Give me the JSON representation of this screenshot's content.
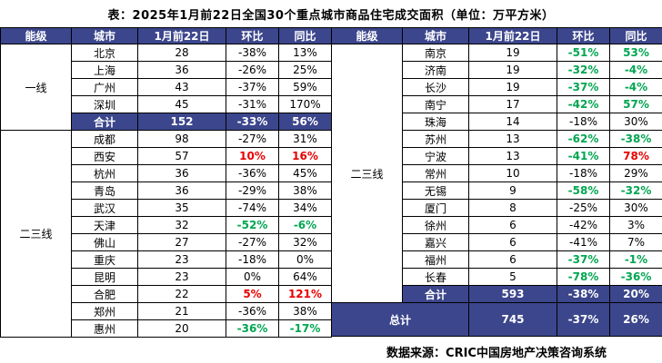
{
  "title": "表：2025年1月前22日全国30个重点城市商品住宅成交面积（单位：万平方米）",
  "source": "数据来源：CRIC中国房地产决策咨询系统",
  "colors": {
    "header_bg": "#3c468c",
    "total_row_bg": "#3c468c",
    "header_text": "#ffffff",
    "negative_green": "#00a651",
    "positive_red": "#e80000",
    "body_text": "#000000"
  },
  "chart_data": {
    "type": "table",
    "title": "表：2025年1月前22日全国30个重点城市商品住宅成交面积（单位：万平方米）",
    "columns": [
      "能级",
      "城市",
      "1月前22日",
      "环比",
      "同比"
    ],
    "left_table": {
      "groups": [
        {
          "tier": "一线",
          "rows": [
            {
              "city": "北京",
              "value": "28",
              "mom": "-38%",
              "yoy": "13%"
            },
            {
              "city": "上海",
              "value": "36",
              "mom": "-26%",
              "yoy": "25%"
            },
            {
              "city": "广州",
              "value": "43",
              "mom": "-37%",
              "yoy": "59%"
            },
            {
              "city": "深圳",
              "value": "45",
              "mom": "-31%",
              "yoy": "170%"
            },
            {
              "city": "合计",
              "value": "152",
              "mom": "-33%",
              "yoy": "56%",
              "kind": "subtotal"
            }
          ]
        },
        {
          "tier": "二三线",
          "rows": [
            {
              "city": "成都",
              "value": "98",
              "mom": "-27%",
              "yoy": "31%"
            },
            {
              "city": "西安",
              "value": "57",
              "mom": "10%",
              "yoy": "16%",
              "mom_color": "red",
              "yoy_color": "red"
            },
            {
              "city": "杭州",
              "value": "36",
              "mom": "-36%",
              "yoy": "45%"
            },
            {
              "city": "青岛",
              "value": "36",
              "mom": "-29%",
              "yoy": "38%"
            },
            {
              "city": "武汉",
              "value": "35",
              "mom": "-74%",
              "yoy": "34%"
            },
            {
              "city": "天津",
              "value": "32",
              "mom": "-52%",
              "yoy": "-6%",
              "mom_color": "green",
              "yoy_color": "green"
            },
            {
              "city": "佛山",
              "value": "27",
              "mom": "-27%",
              "yoy": "32%"
            },
            {
              "city": "重庆",
              "value": "23",
              "mom": "-18%",
              "yoy": "0%"
            },
            {
              "city": "昆明",
              "value": "23",
              "mom": "0%",
              "yoy": "64%"
            },
            {
              "city": "合肥",
              "value": "22",
              "mom": "5%",
              "yoy": "121%",
              "mom_color": "red",
              "yoy_color": "red"
            },
            {
              "city": "郑州",
              "value": "21",
              "mom": "-36%",
              "yoy": "38%"
            },
            {
              "city": "惠州",
              "value": "20",
              "mom": "-36%",
              "yoy": "-17%",
              "mom_color": "green",
              "yoy_color": "green"
            }
          ]
        }
      ]
    },
    "right_table": {
      "groups": [
        {
          "tier": "二三线",
          "rows": [
            {
              "city": "南京",
              "value": "19",
              "mom": "-51%",
              "yoy": "53%",
              "mom_color": "green",
              "yoy_color": "green"
            },
            {
              "city": "济南",
              "value": "19",
              "mom": "-32%",
              "yoy": "-4%",
              "mom_color": "green",
              "yoy_color": "green"
            },
            {
              "city": "长沙",
              "value": "19",
              "mom": "-37%",
              "yoy": "-4%",
              "mom_color": "green",
              "yoy_color": "green"
            },
            {
              "city": "南宁",
              "value": "17",
              "mom": "-42%",
              "yoy": "57%",
              "mom_color": "green",
              "yoy_color": "green"
            },
            {
              "city": "珠海",
              "value": "14",
              "mom": "-18%",
              "yoy": "30%"
            },
            {
              "city": "苏州",
              "value": "13",
              "mom": "-62%",
              "yoy": "-38%",
              "mom_color": "green",
              "yoy_color": "green"
            },
            {
              "city": "宁波",
              "value": "13",
              "mom": "-41%",
              "yoy": "78%",
              "mom_color": "green",
              "yoy_color": "red"
            },
            {
              "city": "常州",
              "value": "10",
              "mom": "-18%",
              "yoy": "29%"
            },
            {
              "city": "无锡",
              "value": "9",
              "mom": "-58%",
              "yoy": "-32%",
              "mom_color": "green",
              "yoy_color": "green"
            },
            {
              "city": "厦门",
              "value": "8",
              "mom": "-25%",
              "yoy": "30%"
            },
            {
              "city": "徐州",
              "value": "6",
              "mom": "-42%",
              "yoy": "3%"
            },
            {
              "city": "嘉兴",
              "value": "6",
              "mom": "-41%",
              "yoy": "7%"
            },
            {
              "city": "福州",
              "value": "6",
              "mom": "-37%",
              "yoy": "-1%",
              "mom_color": "green",
              "yoy_color": "green"
            },
            {
              "city": "长春",
              "value": "5",
              "mom": "-78%",
              "yoy": "-36%",
              "mom_color": "green",
              "yoy_color": "green"
            },
            {
              "city": "合计",
              "value": "593",
              "mom": "-38%",
              "yoy": "20%",
              "kind": "subtotal"
            }
          ]
        }
      ],
      "grand_total": {
        "label": "总计",
        "value": "745",
        "mom": "-37%",
        "yoy": "26%"
      }
    }
  }
}
